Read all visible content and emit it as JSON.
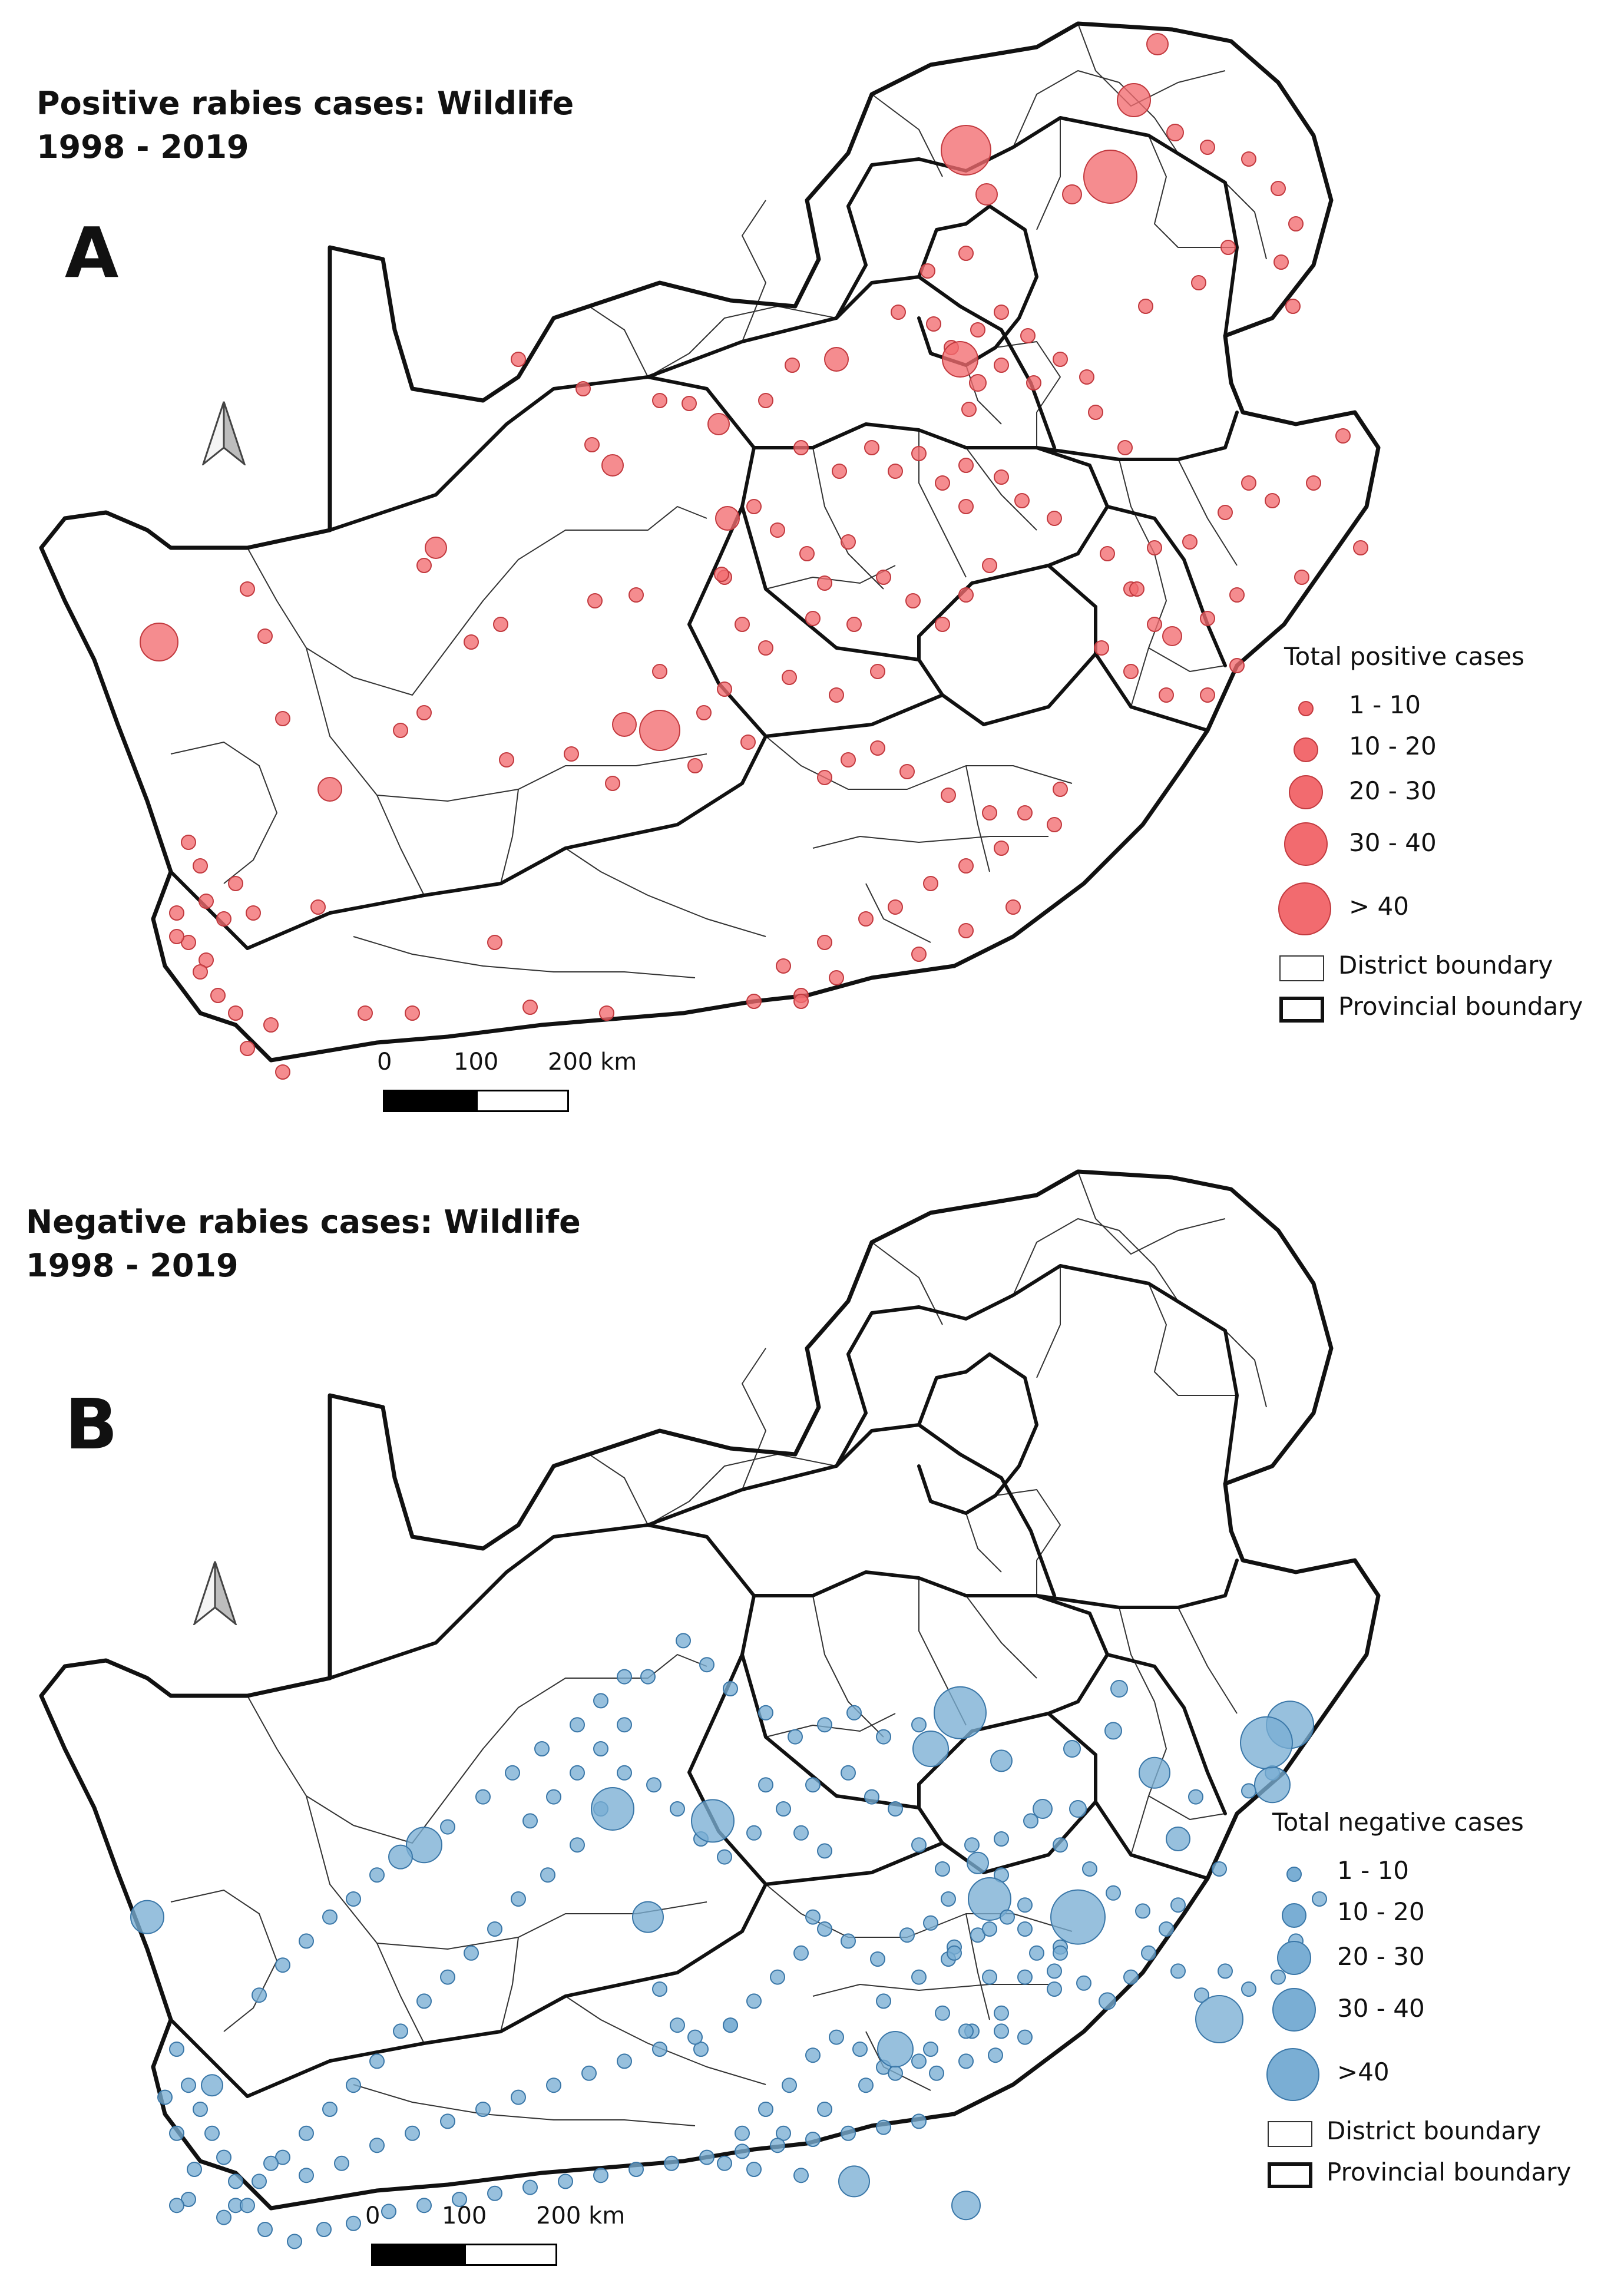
{
  "panels": [
    {
      "title_line1": "Positive rabies cases: Wildlife",
      "title_line2": "1998 - 2019",
      "letter": "A",
      "legend_title": "Total positive cases",
      "size_classes": [
        "1 - 10",
        "10 - 20",
        "20 - 30",
        "30 - 40",
        "> 40"
      ],
      "boundary_district": "District boundary",
      "boundary_province": "Provincial boundary",
      "scale_labels": [
        "0",
        "100",
        "200 km"
      ],
      "fill_color": "#f26b6f",
      "stroke_color": "#c23a3f"
    },
    {
      "title_line1": "Negative rabies cases: Wildlife",
      "title_line2": "1998 - 2019",
      "letter": "B",
      "legend_title": "Total negative cases",
      "size_classes": [
        "1 - 10",
        "10 - 20",
        "20 - 30",
        "30 - 40",
        ">40"
      ],
      "boundary_district": "District boundary",
      "boundary_province": "Provincial boundary",
      "scale_labels": [
        "0",
        "100",
        "200 km"
      ],
      "fill_color": "#7aaed4",
      "stroke_color": "#3a77a8"
    }
  ],
  "north_icon": "north-arrow-icon"
}
